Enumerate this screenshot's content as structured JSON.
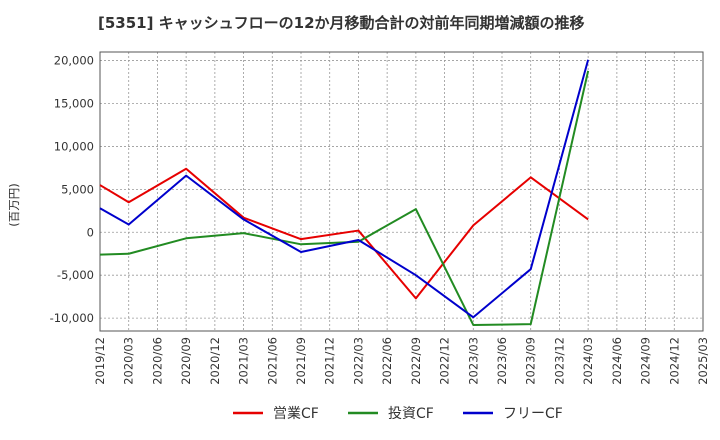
{
  "chart_data": {
    "type": "line",
    "title": "[5351]  キャッシュフローの12か月移動合計の対前年同期増減額の推移",
    "ylabel": "(百万円)",
    "xlabel": "",
    "ylim": [
      -11500,
      21000
    ],
    "yticks": [
      -10000,
      -5000,
      0,
      5000,
      10000,
      15000,
      20000
    ],
    "ytick_labels": [
      "-10,000",
      "-5,000",
      "0",
      "5,000",
      "10,000",
      "15,000",
      "20,000"
    ],
    "categories": [
      "2019/12",
      "2020/03",
      "2020/06",
      "2020/09",
      "2020/12",
      "2021/03",
      "2021/06",
      "2021/09",
      "2021/12",
      "2022/03",
      "2022/06",
      "2022/09",
      "2022/12",
      "2023/03",
      "2023/06",
      "2023/09",
      "2023/12",
      "2024/03",
      "2024/06",
      "2024/09",
      "2024/12",
      "2025/03"
    ],
    "grid": true,
    "legend_position": "bottom",
    "series": [
      {
        "name": "営業CF",
        "color": "#e60000",
        "values": [
          5500,
          3500,
          null,
          7400,
          null,
          1700,
          null,
          -800,
          null,
          200,
          null,
          -7700,
          null,
          800,
          null,
          6400,
          null,
          1500,
          null,
          null,
          null,
          null
        ]
      },
      {
        "name": "投資CF",
        "color": "#228b22",
        "values": [
          -2600,
          -2500,
          null,
          -700,
          null,
          -100,
          null,
          -1400,
          null,
          -1100,
          null,
          2700,
          null,
          -10800,
          null,
          -10700,
          null,
          18800,
          null,
          null,
          null,
          null
        ]
      },
      {
        "name": "フリーCF",
        "color": "#0000cc",
        "values": [
          2800,
          900,
          null,
          6600,
          null,
          1500,
          null,
          -2300,
          null,
          -900,
          null,
          -5000,
          null,
          -9900,
          null,
          -4300,
          null,
          20100,
          null,
          null,
          null,
          null
        ]
      }
    ]
  }
}
